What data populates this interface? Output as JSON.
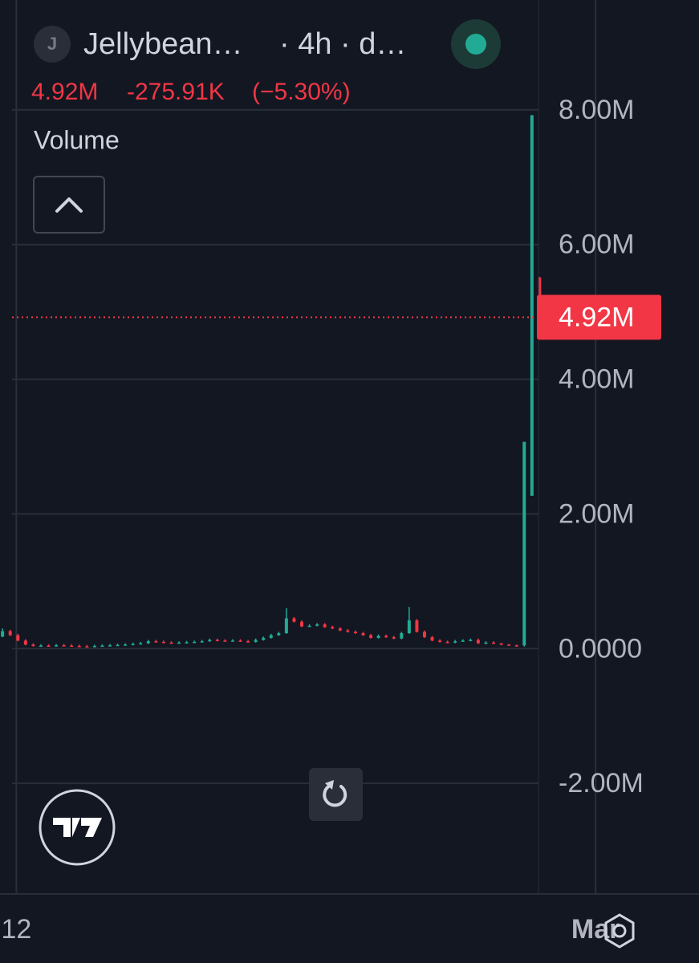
{
  "chart_data": {
    "type": "candlestick",
    "symbol_initial": "J",
    "symbol": "Jellybean…",
    "interval": "· 4h · d…",
    "indicator": "Volume",
    "last_price": {
      "value": 4920000,
      "label": "4.92M"
    },
    "change": {
      "value": -275910,
      "label": "-275.91K"
    },
    "change_percent": {
      "value": -5.3,
      "label": "(−5.30%)"
    },
    "up_color": "#22ab94",
    "down_color": "#f23645",
    "grid": true,
    "ylim": [
      -3630000,
      9630000
    ],
    "yticks": [
      {
        "value": 8000000,
        "label": "8.00M"
      },
      {
        "value": 6000000,
        "label": "6.00M"
      },
      {
        "value": 4000000,
        "label": "4.00M"
      },
      {
        "value": 2000000,
        "label": "2.00M"
      },
      {
        "value": 0,
        "label": "0.0000"
      },
      {
        "value": -2000000,
        "label": "-2.00M"
      }
    ],
    "xlim": [
      -0.33,
      84.5
    ],
    "xticks": [
      {
        "value": 1.8,
        "label": "12"
      },
      {
        "value": 77.3,
        "label": "Mar"
      }
    ],
    "open": [
      180000,
      260000,
      200000,
      120000,
      60000,
      40000,
      45000,
      40000,
      50000,
      45000,
      40000,
      35000,
      30000,
      40000,
      45000,
      50000,
      55000,
      60000,
      70000,
      80000,
      110000,
      100000,
      90000,
      85000,
      90000,
      95000,
      100000,
      110000,
      130000,
      120000,
      115000,
      120000,
      110000,
      100000,
      130000,
      160000,
      200000,
      230000,
      450000,
      400000,
      330000,
      340000,
      360000,
      320000,
      300000,
      270000,
      250000,
      230000,
      200000,
      160000,
      190000,
      170000,
      150000,
      230000,
      420000,
      250000,
      170000,
      120000,
      100000,
      90000,
      110000,
      120000,
      130000,
      80000,
      90000,
      80000,
      60000,
      50000,
      50000,
      2270000,
      5510000
    ],
    "high": [
      300000,
      280000,
      220000,
      140000,
      80000,
      65000,
      65000,
      70000,
      70000,
      65000,
      60000,
      55000,
      60000,
      65000,
      70000,
      75000,
      80000,
      90000,
      100000,
      130000,
      130000,
      120000,
      110000,
      110000,
      115000,
      120000,
      130000,
      150000,
      150000,
      140000,
      140000,
      140000,
      130000,
      150000,
      180000,
      220000,
      250000,
      600000,
      470000,
      420000,
      360000,
      380000,
      380000,
      340000,
      320000,
      290000,
      270000,
      250000,
      220000,
      210000,
      210000,
      190000,
      250000,
      620000,
      440000,
      270000,
      190000,
      140000,
      120000,
      130000,
      140000,
      150000,
      150000,
      110000,
      110000,
      80000,
      70000,
      60000,
      3070000,
      7920000,
      5520000
    ],
    "low": [
      170000,
      190000,
      110000,
      50000,
      30000,
      30000,
      30000,
      30000,
      35000,
      30000,
      25000,
      20000,
      20000,
      30000,
      35000,
      40000,
      45000,
      50000,
      60000,
      70000,
      90000,
      80000,
      75000,
      75000,
      80000,
      85000,
      90000,
      100000,
      110000,
      105000,
      105000,
      100000,
      90000,
      90000,
      120000,
      150000,
      190000,
      220000,
      390000,
      320000,
      320000,
      330000,
      310000,
      290000,
      260000,
      240000,
      220000,
      190000,
      150000,
      150000,
      160000,
      140000,
      140000,
      220000,
      240000,
      160000,
      110000,
      90000,
      80000,
      80000,
      100000,
      110000,
      70000,
      70000,
      70000,
      50000,
      40000,
      30000,
      30000,
      2270000,
      4870000
    ],
    "close": [
      260000,
      200000,
      120000,
      60000,
      40000,
      45000,
      40000,
      50000,
      45000,
      40000,
      35000,
      30000,
      40000,
      45000,
      50000,
      55000,
      60000,
      70000,
      80000,
      110000,
      100000,
      90000,
      85000,
      90000,
      95000,
      100000,
      110000,
      130000,
      120000,
      115000,
      120000,
      110000,
      100000,
      130000,
      160000,
      200000,
      230000,
      450000,
      400000,
      330000,
      340000,
      360000,
      320000,
      300000,
      270000,
      250000,
      230000,
      200000,
      160000,
      190000,
      170000,
      150000,
      230000,
      420000,
      250000,
      170000,
      120000,
      100000,
      90000,
      110000,
      120000,
      130000,
      80000,
      90000,
      80000,
      60000,
      50000,
      40000,
      3070000,
      7920000,
      4920000
    ]
  }
}
